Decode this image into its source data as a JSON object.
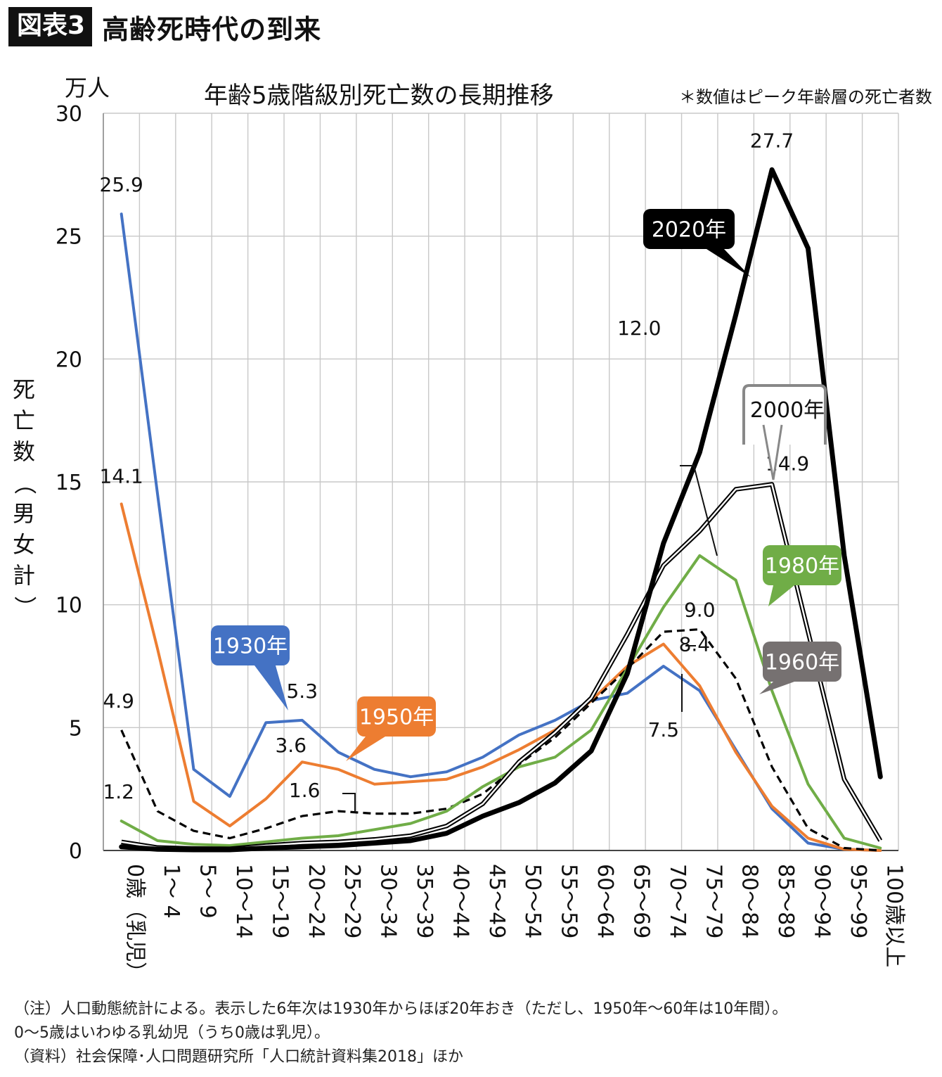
{
  "header": {
    "badge": "図表3",
    "title": "高齢死時代の到来"
  },
  "chart_data": {
    "type": "line",
    "title": "年齢5歳階級別死亡数の長期推移",
    "note": "＊数値はピーク年齢層の死亡者数",
    "unit": "万人",
    "ylabel": "死亡数（男女計）",
    "ylim": [
      0,
      30
    ],
    "yticks": [
      0,
      5,
      10,
      15,
      20,
      25,
      30
    ],
    "grid": true,
    "categories": [
      "0歳（乳児）",
      "1〜 4",
      "5〜 9",
      "10〜14",
      "15〜19",
      "20〜24",
      "25〜29",
      "30〜34",
      "35〜39",
      "40〜44",
      "45〜49",
      "50〜54",
      "55〜59",
      "60〜64",
      "65〜69",
      "70〜74",
      "75〜79",
      "80〜84",
      "85〜89",
      "90〜94",
      "95〜99",
      "100歳以上"
    ],
    "series": [
      {
        "name": "1930年",
        "color": "#4472C4",
        "style": "solid",
        "values": [
          25.9,
          14.5,
          3.3,
          2.2,
          5.2,
          5.3,
          4.0,
          3.3,
          3.0,
          3.2,
          3.8,
          4.7,
          5.3,
          6.1,
          6.4,
          7.5,
          6.5,
          4.1,
          1.7,
          0.3,
          0.05,
          0.0
        ]
      },
      {
        "name": "1950年",
        "color": "#ED7D31",
        "style": "solid",
        "values": [
          14.1,
          8.2,
          2.0,
          1.0,
          2.1,
          3.6,
          3.3,
          2.7,
          2.8,
          2.9,
          3.4,
          4.1,
          4.9,
          6.1,
          7.5,
          8.4,
          6.7,
          4.0,
          1.8,
          0.5,
          0.05,
          0.0
        ]
      },
      {
        "name": "1960年",
        "color": "#000000",
        "style": "dashed",
        "values": [
          4.9,
          1.6,
          0.8,
          0.5,
          0.9,
          1.4,
          1.6,
          1.5,
          1.5,
          1.7,
          2.3,
          3.5,
          4.6,
          6.0,
          7.4,
          8.9,
          9.0,
          7.0,
          3.4,
          0.9,
          0.1,
          0.0
        ]
      },
      {
        "name": "1980年",
        "color": "#70AD47",
        "style": "solid",
        "values": [
          1.2,
          0.4,
          0.25,
          0.2,
          0.35,
          0.5,
          0.6,
          0.85,
          1.1,
          1.6,
          2.6,
          3.4,
          3.8,
          4.9,
          7.4,
          9.9,
          12.0,
          11.0,
          6.5,
          2.7,
          0.5,
          0.1
        ]
      },
      {
        "name": "2000年",
        "color": "#000000",
        "style": "double",
        "values": [
          0.35,
          0.12,
          0.08,
          0.07,
          0.2,
          0.3,
          0.35,
          0.45,
          0.6,
          1.0,
          1.9,
          3.6,
          4.8,
          6.2,
          8.8,
          11.6,
          13.0,
          14.7,
          14.9,
          8.9,
          2.9,
          0.4
        ]
      },
      {
        "name": "2020年",
        "color": "#000000",
        "style": "bold",
        "values": [
          0.15,
          0.05,
          0.03,
          0.03,
          0.1,
          0.15,
          0.2,
          0.3,
          0.4,
          0.7,
          1.4,
          1.95,
          2.75,
          4.05,
          7.2,
          12.5,
          16.2,
          21.8,
          27.7,
          24.5,
          12.0,
          3.0
        ]
      }
    ],
    "data_labels": [
      {
        "text": "25.9",
        "series": "1930年",
        "index": 0
      },
      {
        "text": "5.3",
        "series": "1930年",
        "index": 5
      },
      {
        "text": "7.5",
        "series": "1930年",
        "index": 15
      },
      {
        "text": "14.1",
        "series": "1950年",
        "index": 0
      },
      {
        "text": "3.6",
        "series": "1950年",
        "index": 5
      },
      {
        "text": "8.4",
        "series": "1950年",
        "index": 15
      },
      {
        "text": "4.9",
        "series": "1960年",
        "index": 0
      },
      {
        "text": "1.6",
        "series": "1960年",
        "index": 6
      },
      {
        "text": "9.0",
        "series": "1960年",
        "index": 16
      },
      {
        "text": "1.2",
        "series": "1980年",
        "index": 0
      },
      {
        "text": "12.0",
        "series": "1980年",
        "index": 16
      },
      {
        "text": "14.9",
        "series": "2000年",
        "index": 18
      },
      {
        "text": "27.7",
        "series": "2020年",
        "index": 18
      }
    ]
  },
  "notes": [
    "（注）人口動態統計による。表示した6年次は1930年からほぼ20年おき（ただし、1950年〜60年は10年間）。",
    "0〜5歳はいわゆる乳幼児（うち0歳は乳児）。",
    "（資料）社会保障･人口問題研究所「人口統計資料集2018」ほか"
  ]
}
